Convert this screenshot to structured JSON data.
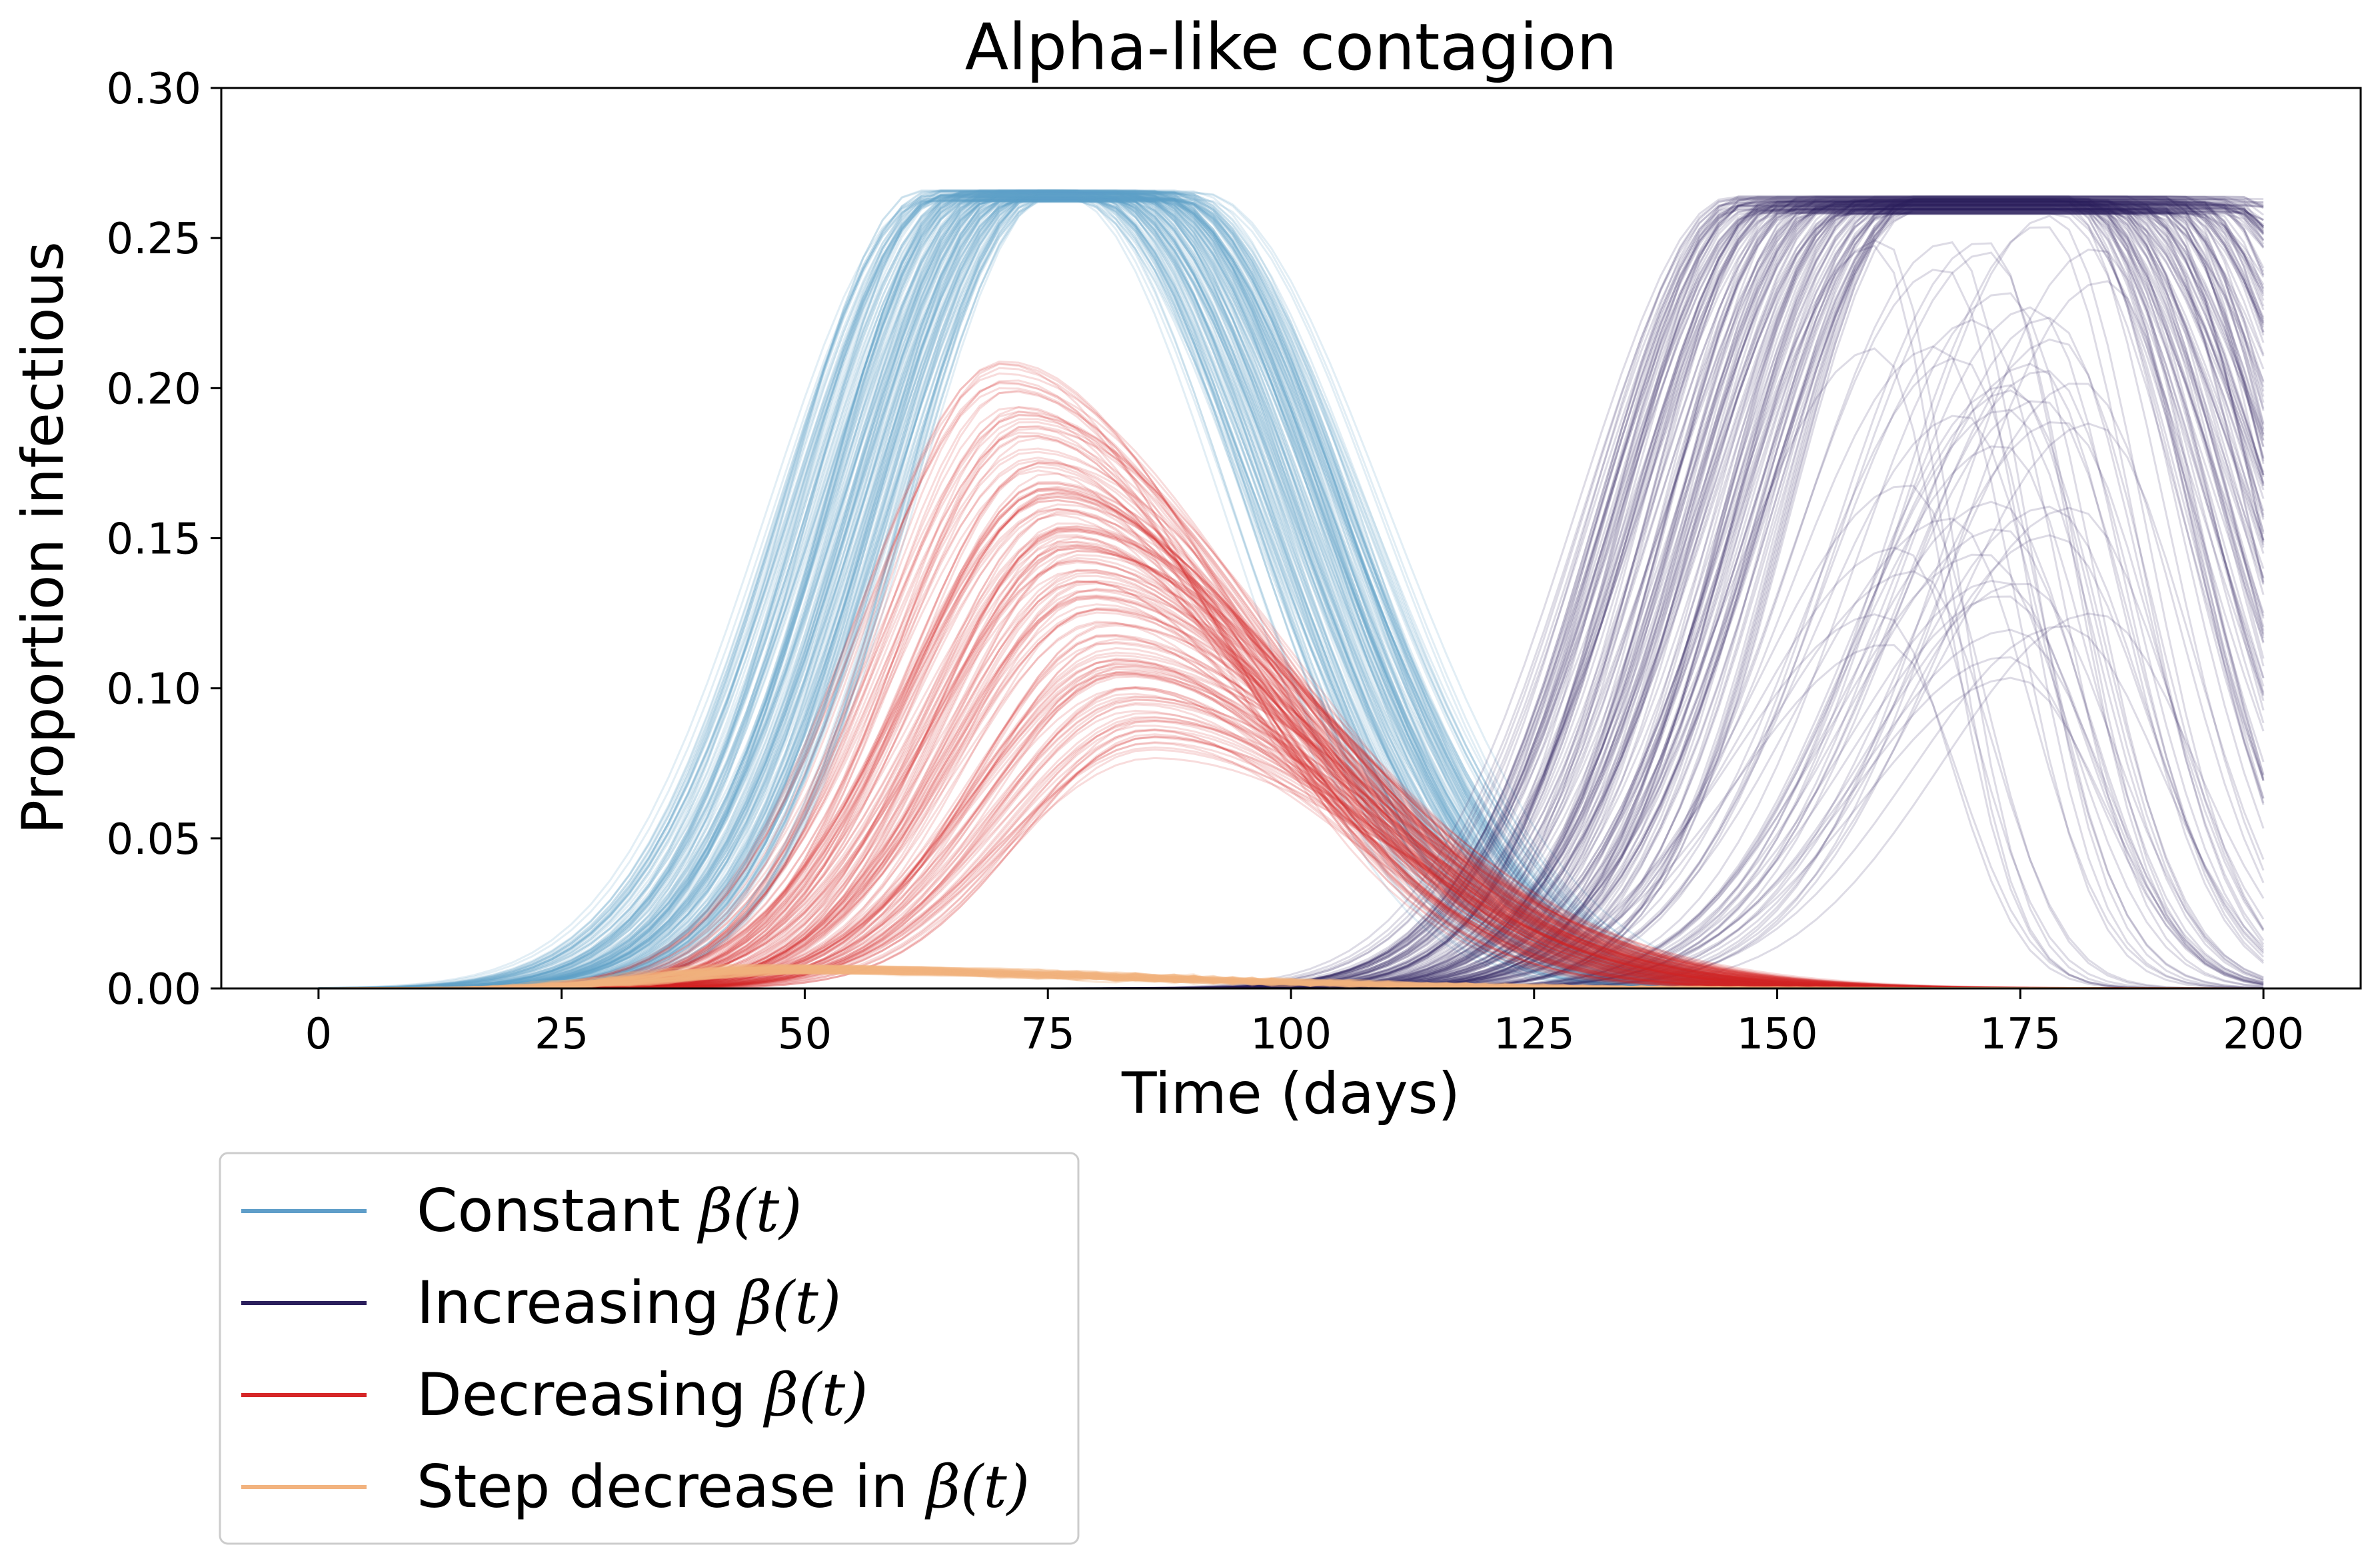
{
  "chart_data": {
    "type": "line",
    "title": "Alpha-like contagion",
    "xlabel": "Time (days)",
    "ylabel": "Proportion infectious",
    "xlim": [
      -10,
      210
    ],
    "ylim": [
      0,
      0.3
    ],
    "xticks": [
      0,
      25,
      50,
      75,
      100,
      125,
      150,
      175,
      200
    ],
    "xtick_labels": [
      "0",
      "25",
      "50",
      "75",
      "100",
      "125",
      "150",
      "175",
      "200"
    ],
    "yticks": [
      0,
      0.05,
      0.1,
      0.15,
      0.2,
      0.25,
      0.3
    ],
    "ytick_labels": [
      "0.00",
      "0.05",
      "0.10",
      "0.15",
      "0.20",
      "0.25",
      "0.30"
    ],
    "grid": false,
    "legend_position": "below-left",
    "series": [
      {
        "name_prefix": "Constant ",
        "name_math": "β(t)",
        "color": "#5f9ec9",
        "ensemble": {
          "runs": 1000,
          "peak_time_range": [
            66,
            88
          ],
          "peak_value_range": [
            0.262,
            0.266
          ],
          "shape": "plateau"
        },
        "representative": {
          "x": [
            0,
            25,
            30,
            40,
            50,
            60,
            70,
            75,
            80,
            85,
            90,
            100,
            110,
            120,
            130,
            140,
            150,
            200
          ],
          "y": [
            0,
            0.003,
            0.006,
            0.03,
            0.1,
            0.22,
            0.264,
            0.264,
            0.263,
            0.25,
            0.21,
            0.12,
            0.06,
            0.025,
            0.01,
            0.003,
            0.001,
            0
          ]
        }
      },
      {
        "name_prefix": "Increasing ",
        "name_math": "β(t)",
        "color": "#2b1f5c",
        "ensemble": {
          "runs": 1000,
          "peak_time_range": [
            150,
            200
          ],
          "peak_value_range": [
            0.1,
            0.264
          ],
          "shape": "plateau"
        },
        "representative": {
          "x": [
            0,
            100,
            110,
            120,
            130,
            140,
            150,
            160,
            170,
            180,
            190,
            200
          ],
          "y": [
            0,
            0.001,
            0.004,
            0.015,
            0.05,
            0.15,
            0.26,
            0.263,
            0.263,
            0.262,
            0.2,
            0.05
          ]
        }
      },
      {
        "name_prefix": "Decreasing ",
        "name_math": "β(t)",
        "color": "#d62728",
        "ensemble": {
          "runs": 1000,
          "peak_time_range": [
            68,
            95
          ],
          "peak_value_range": [
            0.07,
            0.203
          ],
          "shape": "peak"
        },
        "representative": {
          "x": [
            0,
            25,
            30,
            40,
            50,
            60,
            70,
            73,
            80,
            90,
            100,
            110,
            120,
            130,
            140,
            160,
            200
          ],
          "y": [
            0,
            0.003,
            0.006,
            0.025,
            0.07,
            0.15,
            0.198,
            0.202,
            0.19,
            0.15,
            0.1,
            0.06,
            0.032,
            0.016,
            0.008,
            0.003,
            0
          ]
        }
      },
      {
        "name_prefix": "Step decrease in ",
        "name_math": "β(t)",
        "color": "#f2b37f",
        "ensemble": {
          "runs": 1000,
          "peak_time_range": [
            40,
            55
          ],
          "peak_value_range": [
            0.005,
            0.008
          ],
          "shape": "peak"
        },
        "representative": {
          "x": [
            0,
            20,
            30,
            40,
            50,
            60,
            70,
            80,
            90,
            100,
            120,
            140,
            200
          ],
          "y": [
            0,
            0.001,
            0.003,
            0.006,
            0.007,
            0.006,
            0.005,
            0.004,
            0.003,
            0.002,
            0.001,
            0.0005,
            0
          ]
        }
      }
    ]
  }
}
